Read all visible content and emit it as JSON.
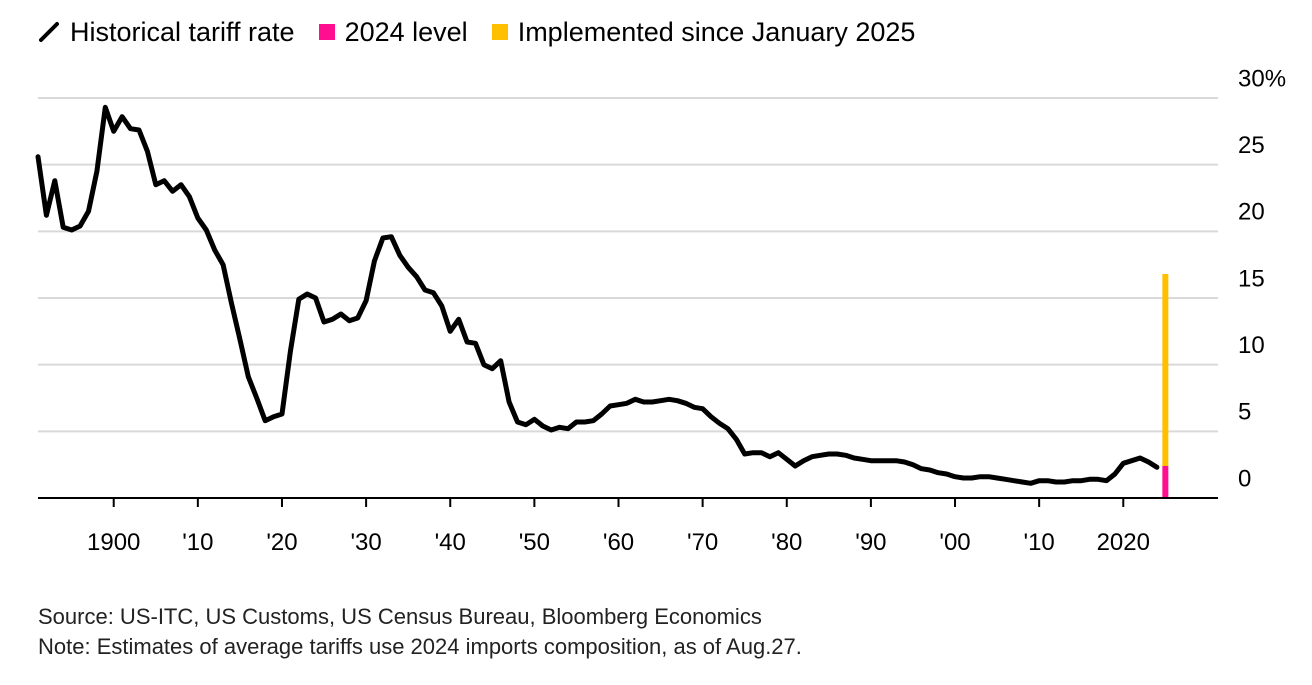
{
  "legend": {
    "items": [
      {
        "label": "Historical tariff rate",
        "color": "#000000",
        "kind": "line"
      },
      {
        "label": "2024 level",
        "color": "#ff0f8f",
        "kind": "square"
      },
      {
        "label": "Implemented since January 2025",
        "color": "#ffc000",
        "kind": "square"
      }
    ]
  },
  "chart_data": {
    "type": "line",
    "title": "",
    "xlabel": "",
    "ylabel": "",
    "xlim": [
      1891,
      2029
    ],
    "ylim": [
      0,
      30
    ],
    "y_ticks": [
      0,
      5,
      10,
      15,
      20,
      25,
      30
    ],
    "y_tick_labels": [
      "0",
      "5",
      "10",
      "15",
      "20",
      "25",
      "30%"
    ],
    "x_ticks": [
      1900,
      1910,
      1920,
      1930,
      1940,
      1950,
      1960,
      1970,
      1980,
      1990,
      2000,
      2010,
      2020
    ],
    "x_tick_labels": [
      "1900",
      "'10",
      "'20",
      "'30",
      "'40",
      "'50",
      "'60",
      "'70",
      "'80",
      "'90",
      "'00",
      "'10",
      "2020"
    ],
    "grid": true,
    "legend_position": "top-left",
    "series": [
      {
        "name": "Historical tariff rate",
        "color": "#000000",
        "x": [
          1891,
          1892,
          1893,
          1894,
          1895,
          1896,
          1897,
          1898,
          1899,
          1900,
          1901,
          1902,
          1903,
          1904,
          1905,
          1906,
          1907,
          1908,
          1909,
          1910,
          1911,
          1912,
          1913,
          1914,
          1915,
          1916,
          1917,
          1918,
          1919,
          1920,
          1921,
          1922,
          1923,
          1924,
          1925,
          1926,
          1927,
          1928,
          1929,
          1930,
          1931,
          1932,
          1933,
          1934,
          1935,
          1936,
          1937,
          1938,
          1939,
          1940,
          1941,
          1942,
          1943,
          1944,
          1945,
          1946,
          1947,
          1948,
          1949,
          1950,
          1951,
          1952,
          1953,
          1954,
          1955,
          1956,
          1957,
          1958,
          1959,
          1960,
          1961,
          1962,
          1963,
          1964,
          1965,
          1966,
          1967,
          1968,
          1969,
          1970,
          1971,
          1972,
          1973,
          1974,
          1975,
          1976,
          1977,
          1978,
          1979,
          1980,
          1981,
          1982,
          1983,
          1984,
          1985,
          1986,
          1987,
          1988,
          1989,
          1990,
          1991,
          1992,
          1993,
          1994,
          1995,
          1996,
          1997,
          1998,
          1999,
          2000,
          2001,
          2002,
          2003,
          2004,
          2005,
          2006,
          2007,
          2008,
          2009,
          2010,
          2011,
          2012,
          2013,
          2014,
          2015,
          2016,
          2017,
          2018,
          2019,
          2020,
          2021,
          2022,
          2023,
          2024
        ],
        "y": [
          25.6,
          21.2,
          23.8,
          20.3,
          20.1,
          20.4,
          21.5,
          24.5,
          29.3,
          27.5,
          28.6,
          27.7,
          27.6,
          26.0,
          23.5,
          23.8,
          23.0,
          23.5,
          22.6,
          21.0,
          20.1,
          18.6,
          17.5,
          14.6,
          11.9,
          9.1,
          7.5,
          5.8,
          6.1,
          6.3,
          11.0,
          14.9,
          15.3,
          15.0,
          13.2,
          13.4,
          13.8,
          13.3,
          13.5,
          14.8,
          17.8,
          19.5,
          19.6,
          18.2,
          17.3,
          16.6,
          15.6,
          15.4,
          14.4,
          12.5,
          13.4,
          11.7,
          11.6,
          10.0,
          9.7,
          10.3,
          7.2,
          5.7,
          5.5,
          5.9,
          5.4,
          5.1,
          5.3,
          5.2,
          5.7,
          5.7,
          5.8,
          6.3,
          6.9,
          7.0,
          7.1,
          7.4,
          7.2,
          7.2,
          7.3,
          7.4,
          7.3,
          7.1,
          6.8,
          6.7,
          6.1,
          5.6,
          5.2,
          4.4,
          3.3,
          3.4,
          3.4,
          3.1,
          3.4,
          2.9,
          2.4,
          2.8,
          3.1,
          3.2,
          3.3,
          3.3,
          3.2,
          3.0,
          2.9,
          2.8,
          2.8,
          2.8,
          2.8,
          2.7,
          2.5,
          2.2,
          2.1,
          1.9,
          1.8,
          1.6,
          1.5,
          1.5,
          1.6,
          1.6,
          1.5,
          1.4,
          1.3,
          1.2,
          1.1,
          1.3,
          1.3,
          1.2,
          1.2,
          1.3,
          1.3,
          1.4,
          1.4,
          1.3,
          1.8,
          2.6,
          2.8,
          3.0,
          2.7,
          2.3
        ],
        "note": ""
      },
      {
        "name": "2024 level",
        "color": "#ff0f8f",
        "type": "bar",
        "x": [
          2025
        ],
        "y": [
          2.4
        ]
      },
      {
        "name": "Implemented since January 2025",
        "color": "#ffc000",
        "type": "stacked-bar",
        "x": [
          2025
        ],
        "y": [
          14.4
        ],
        "total": 16.8
      }
    ]
  },
  "footer": {
    "source": "Source: US-ITC, US Customs, US Census Bureau, Bloomberg Economics",
    "note": "Note: Estimates of average tariffs use 2024 imports composition, as of Aug.27."
  }
}
